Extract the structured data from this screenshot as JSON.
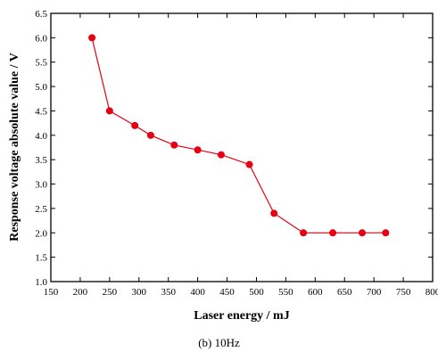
{
  "chart_data": {
    "type": "line",
    "xlabel": "Laser energy / mJ",
    "ylabel": "Response voltage absolute value / V",
    "xlim": [
      150,
      800
    ],
    "ylim": [
      1.0,
      6.5
    ],
    "xticks": [
      "150",
      "200",
      "250",
      "300",
      "350",
      "400",
      "450",
      "500",
      "550",
      "600",
      "650",
      "700",
      "750",
      "800"
    ],
    "yticks": [
      "1.0",
      "1.5",
      "2.0",
      "2.5",
      "3.0",
      "3.5",
      "4.0",
      "4.5",
      "5.0",
      "5.5",
      "6.0",
      "6.5"
    ],
    "grid": false,
    "legend": "none",
    "color": "#e60012",
    "series": [
      {
        "x": [
          220,
          250,
          293,
          320,
          360,
          400,
          440,
          488,
          530,
          580,
          630,
          680,
          720
        ],
        "y": [
          6.0,
          4.5,
          4.2,
          4.0,
          3.8,
          3.7,
          3.6,
          3.4,
          2.4,
          2.0,
          2.0,
          2.0,
          2.0
        ]
      }
    ]
  },
  "caption": "(b)  10Hz"
}
